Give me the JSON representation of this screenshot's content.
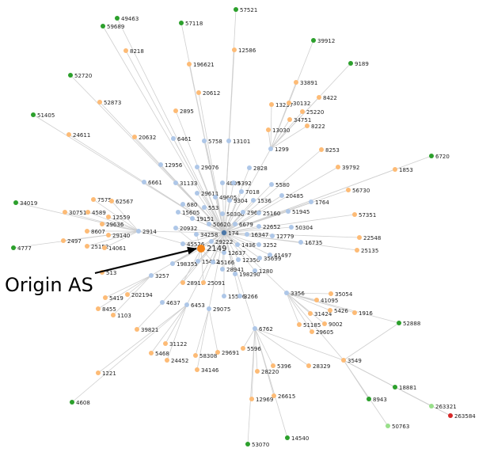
{
  "annotation": {
    "text": "Origin AS"
  },
  "colors": {
    "edge": "#cfcfcf",
    "origin": "#f58518",
    "hub": "#4c78a8",
    "light_blue": "#aec7e8",
    "orange": "#fdbb76",
    "green": "#2ca02c",
    "light_green": "#98df8a",
    "red": "#d62728"
  },
  "origin": {
    "asn": "2149"
  },
  "hub": {
    "asn": "174"
  },
  "nodes": [
    {
      "id": "49463",
      "t": "green"
    },
    {
      "id": "59689",
      "t": "green"
    },
    {
      "id": "57118",
      "t": "green"
    },
    {
      "id": "57521",
      "t": "green"
    },
    {
      "id": "39912",
      "t": "green"
    },
    {
      "id": "9189",
      "t": "green"
    },
    {
      "id": "52720",
      "t": "green"
    },
    {
      "id": "51405",
      "t": "green"
    },
    {
      "id": "6720",
      "t": "green"
    },
    {
      "id": "34019",
      "t": "green"
    },
    {
      "id": "4777",
      "t": "green"
    },
    {
      "id": "52888",
      "t": "green"
    },
    {
      "id": "18881",
      "t": "green"
    },
    {
      "id": "8943",
      "t": "green"
    },
    {
      "id": "4608",
      "t": "green"
    },
    {
      "id": "53070",
      "t": "green"
    },
    {
      "id": "14540",
      "t": "green"
    },
    {
      "id": "263321",
      "t": "light_green"
    },
    {
      "id": "50763",
      "t": "light_green"
    },
    {
      "id": "263584",
      "t": "red"
    },
    {
      "id": "8218",
      "t": "orange"
    },
    {
      "id": "196621",
      "t": "orange"
    },
    {
      "id": "12586",
      "t": "orange"
    },
    {
      "id": "33891",
      "t": "orange"
    },
    {
      "id": "8422",
      "t": "orange"
    },
    {
      "id": "52873",
      "t": "orange"
    },
    {
      "id": "20612",
      "t": "orange"
    },
    {
      "id": "13237",
      "t": "orange"
    },
    {
      "id": "30132",
      "t": "orange"
    },
    {
      "id": "25220",
      "t": "orange"
    },
    {
      "id": "34751",
      "t": "orange"
    },
    {
      "id": "8222",
      "t": "orange"
    },
    {
      "id": "2895",
      "t": "orange"
    },
    {
      "id": "13030",
      "t": "orange"
    },
    {
      "id": "24611",
      "t": "orange"
    },
    {
      "id": "20632",
      "t": "orange"
    },
    {
      "id": "8253",
      "t": "orange"
    },
    {
      "id": "39792",
      "t": "orange"
    },
    {
      "id": "1853",
      "t": "orange"
    },
    {
      "id": "56730",
      "t": "orange"
    },
    {
      "id": "57351",
      "t": "orange"
    },
    {
      "id": "22548",
      "t": "orange"
    },
    {
      "id": "25135",
      "t": "orange"
    },
    {
      "id": "7575",
      "t": "orange"
    },
    {
      "id": "62567",
      "t": "orange"
    },
    {
      "id": "30751",
      "t": "orange"
    },
    {
      "id": "4589",
      "t": "orange"
    },
    {
      "id": "12559",
      "t": "orange"
    },
    {
      "id": "29636",
      "t": "orange"
    },
    {
      "id": "8607",
      "t": "orange"
    },
    {
      "id": "29140",
      "t": "orange"
    },
    {
      "id": "2497",
      "t": "orange"
    },
    {
      "id": "25152",
      "t": "orange"
    },
    {
      "id": "14061",
      "t": "orange"
    },
    {
      "id": "513",
      "t": "orange"
    },
    {
      "id": "5419",
      "t": "orange"
    },
    {
      "id": "202194",
      "t": "orange"
    },
    {
      "id": "8455",
      "t": "orange"
    },
    {
      "id": "1103",
      "t": "orange"
    },
    {
      "id": "39821",
      "t": "orange"
    },
    {
      "id": "31122",
      "t": "orange"
    },
    {
      "id": "5468",
      "t": "orange"
    },
    {
      "id": "24452",
      "t": "orange"
    },
    {
      "id": "58308",
      "t": "orange"
    },
    {
      "id": "29691",
      "t": "orange"
    },
    {
      "id": "34146",
      "t": "orange"
    },
    {
      "id": "1221",
      "t": "orange"
    },
    {
      "id": "5596",
      "t": "orange"
    },
    {
      "id": "28220",
      "t": "orange"
    },
    {
      "id": "5396",
      "t": "orange"
    },
    {
      "id": "26615",
      "t": "orange"
    },
    {
      "id": "12969",
      "t": "orange"
    },
    {
      "id": "28329",
      "t": "orange"
    },
    {
      "id": "35054",
      "t": "orange"
    },
    {
      "id": "41095",
      "t": "orange"
    },
    {
      "id": "31424",
      "t": "orange"
    },
    {
      "id": "5426",
      "t": "orange"
    },
    {
      "id": "1916",
      "t": "orange"
    },
    {
      "id": "51185",
      "t": "orange"
    },
    {
      "id": "9002",
      "t": "orange"
    },
    {
      "id": "29605",
      "t": "orange"
    },
    {
      "id": "3549",
      "t": "orange"
    },
    {
      "id": "28917",
      "t": "orange"
    },
    {
      "id": "25091",
      "t": "orange"
    },
    {
      "id": "6461",
      "t": "light_blue"
    },
    {
      "id": "5758",
      "t": "light_blue"
    },
    {
      "id": "13101",
      "t": "light_blue"
    },
    {
      "id": "1299",
      "t": "light_blue"
    },
    {
      "id": "12956",
      "t": "light_blue"
    },
    {
      "id": "29076",
      "t": "light_blue"
    },
    {
      "id": "2828",
      "t": "light_blue"
    },
    {
      "id": "6661",
      "t": "light_blue"
    },
    {
      "id": "31133",
      "t": "light_blue"
    },
    {
      "id": "4809",
      "t": "light_blue"
    },
    {
      "id": "5392",
      "t": "light_blue"
    },
    {
      "id": "5580",
      "t": "light_blue"
    },
    {
      "id": "29611",
      "t": "light_blue"
    },
    {
      "id": "49605",
      "t": "light_blue"
    },
    {
      "id": "7018",
      "t": "light_blue"
    },
    {
      "id": "20485",
      "t": "light_blue"
    },
    {
      "id": "680",
      "t": "light_blue"
    },
    {
      "id": "9304",
      "t": "light_blue"
    },
    {
      "id": "1536",
      "t": "light_blue"
    },
    {
      "id": "1764",
      "t": "light_blue"
    },
    {
      "id": "553",
      "t": "light_blue"
    },
    {
      "id": "15605",
      "t": "light_blue"
    },
    {
      "id": "50300",
      "t": "light_blue"
    },
    {
      "id": "2967",
      "t": "light_blue"
    },
    {
      "id": "25160",
      "t": "light_blue"
    },
    {
      "id": "51945",
      "t": "light_blue"
    },
    {
      "id": "19151",
      "t": "light_blue"
    },
    {
      "id": "50620",
      "t": "light_blue"
    },
    {
      "id": "6679",
      "t": "light_blue"
    },
    {
      "id": "22652",
      "t": "light_blue"
    },
    {
      "id": "50304",
      "t": "light_blue"
    },
    {
      "id": "20932",
      "t": "light_blue"
    },
    {
      "id": "34258",
      "t": "light_blue"
    },
    {
      "id": "16347",
      "t": "light_blue"
    },
    {
      "id": "12779",
      "t": "light_blue"
    },
    {
      "id": "2914",
      "t": "light_blue"
    },
    {
      "id": "29222",
      "t": "light_blue"
    },
    {
      "id": "16735",
      "t": "light_blue"
    },
    {
      "id": "45526",
      "t": "light_blue"
    },
    {
      "id": "1436",
      "t": "light_blue"
    },
    {
      "id": "3252",
      "t": "light_blue"
    },
    {
      "id": "6762",
      "t": "light_blue"
    },
    {
      "id": "12637",
      "t": "light_blue"
    },
    {
      "id": "41497",
      "t": "light_blue"
    },
    {
      "id": "12350",
      "t": "light_blue"
    },
    {
      "id": "35699",
      "t": "light_blue"
    },
    {
      "id": "198355",
      "t": "light_blue"
    },
    {
      "id": "15412",
      "t": "light_blue"
    },
    {
      "id": "45166",
      "t": "light_blue"
    },
    {
      "id": "3257",
      "t": "light_blue"
    },
    {
      "id": "28941",
      "t": "light_blue"
    },
    {
      "id": "1280",
      "t": "light_blue"
    },
    {
      "id": "198290",
      "t": "light_blue"
    },
    {
      "id": "3356",
      "t": "light_blue"
    },
    {
      "id": "4637",
      "t": "light_blue"
    },
    {
      "id": "15576",
      "t": "light_blue"
    },
    {
      "id": "6453",
      "t": "light_blue"
    },
    {
      "id": "3266",
      "t": "light_blue"
    },
    {
      "id": "29075",
      "t": "light_blue"
    }
  ]
}
